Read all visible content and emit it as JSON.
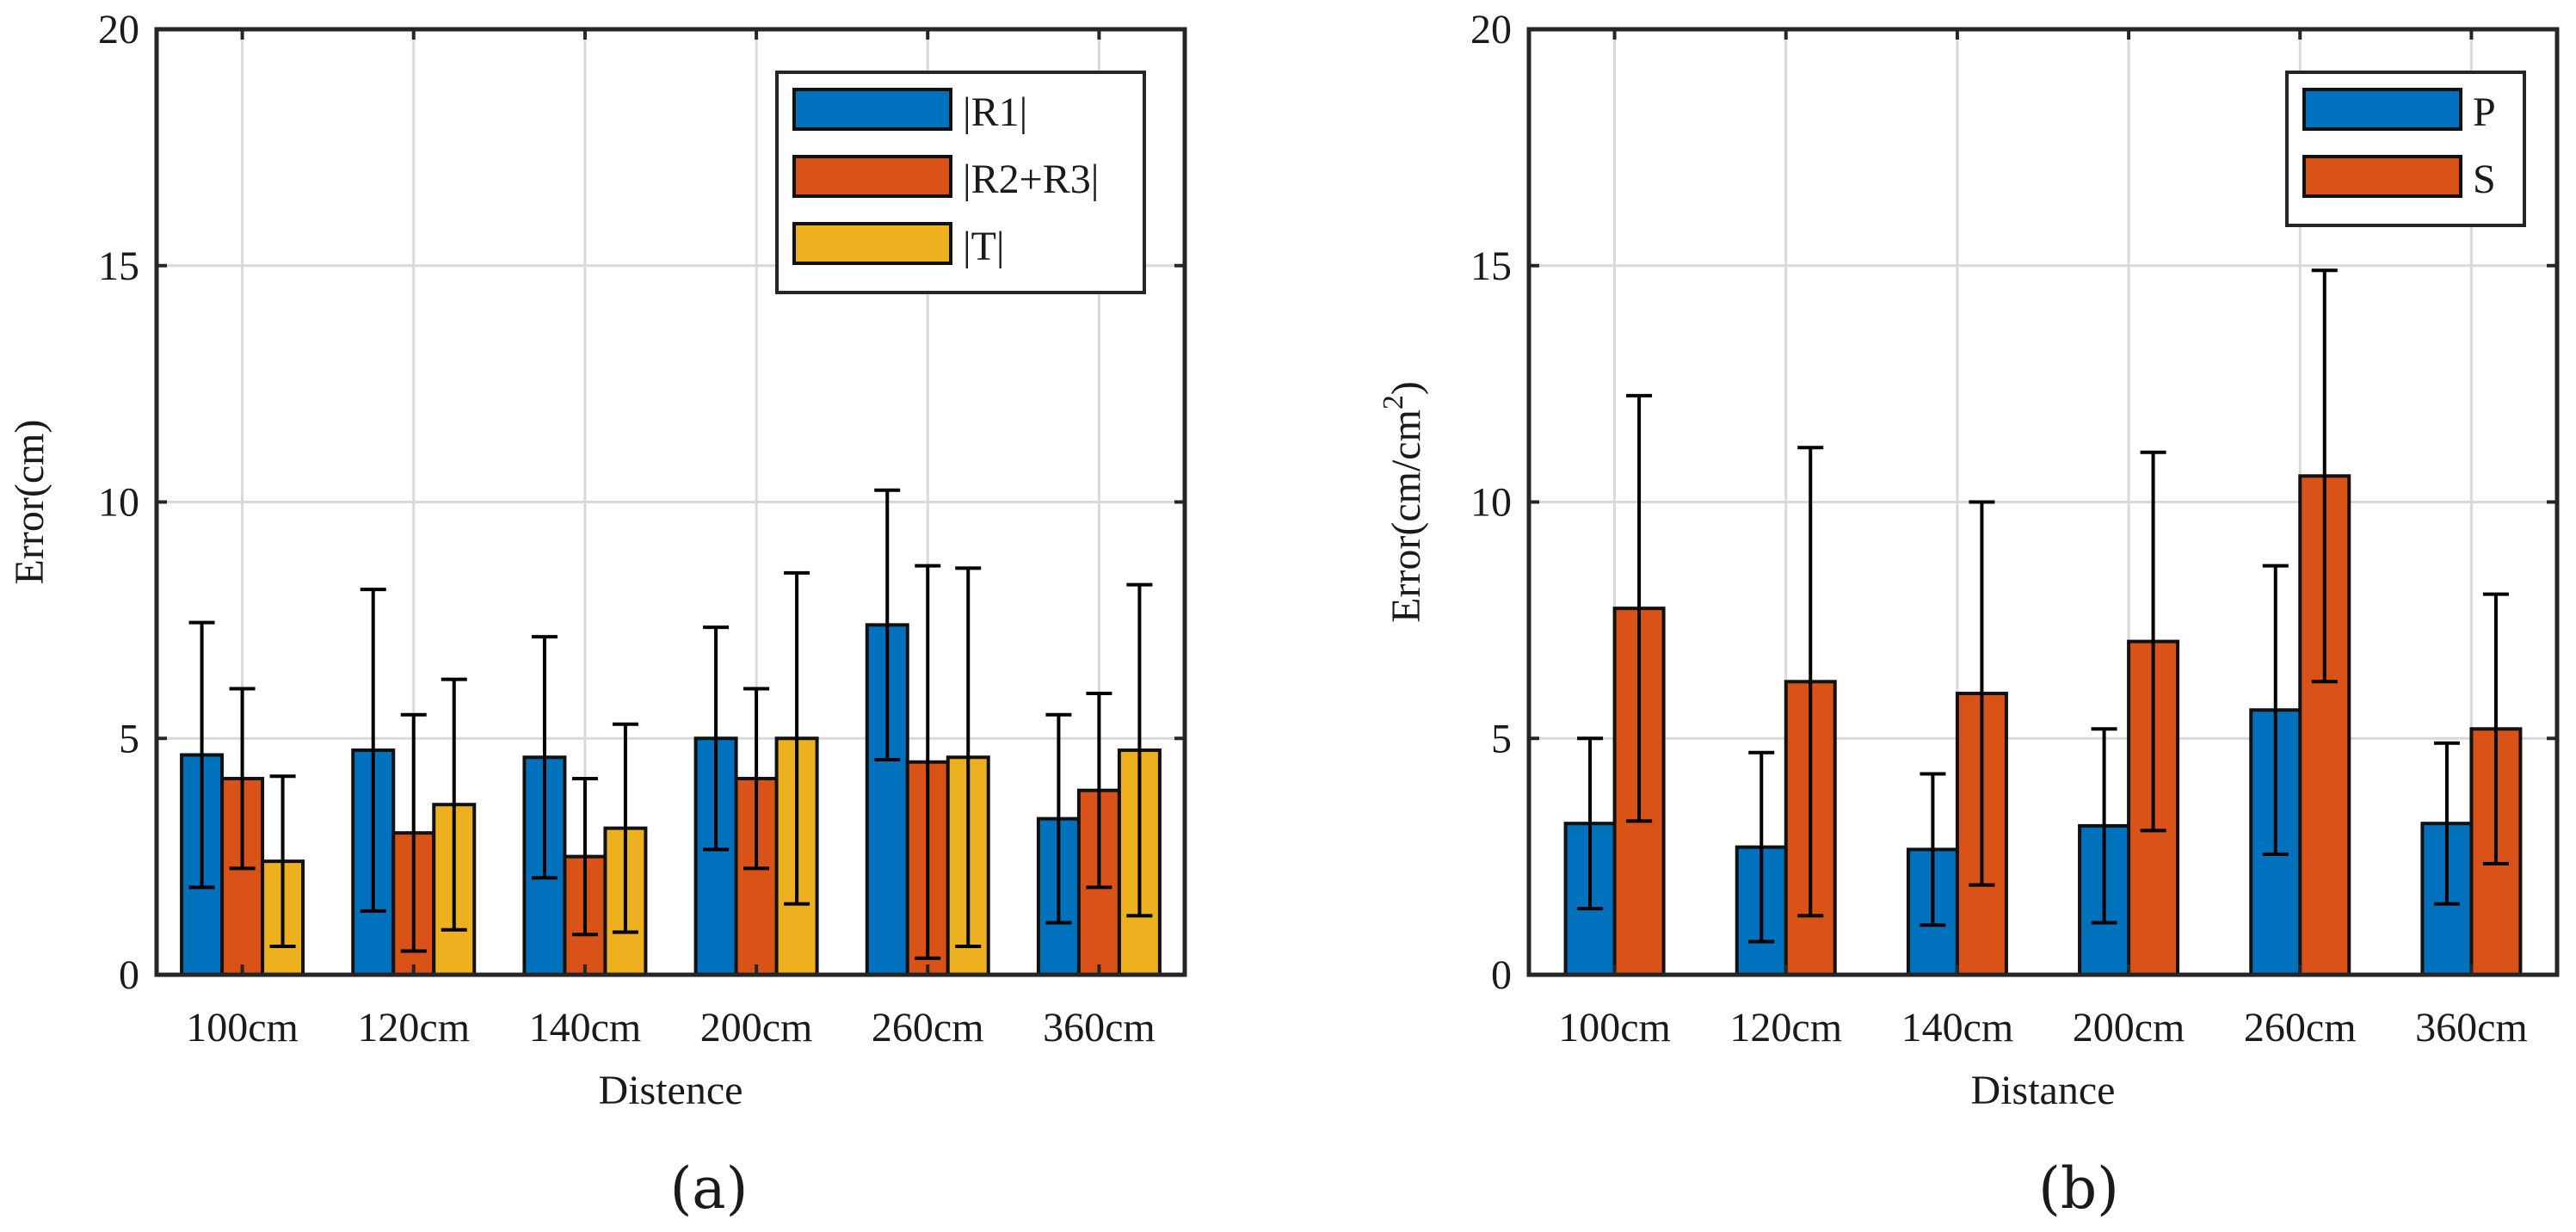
{
  "colors": {
    "series_blue": "#0072BD",
    "series_orange": "#D95319",
    "series_yellow": "#EDB120",
    "axis": "#262626",
    "grid": "#d9d9d9"
  },
  "chart_data": [
    {
      "id": "a",
      "type": "bar",
      "panel_label": "(a)",
      "title": "",
      "xlabel": "Distence",
      "ylabel": "Error(cm)",
      "ylim": [
        0,
        20
      ],
      "yticks": [
        0,
        5,
        10,
        15,
        20
      ],
      "ytick_labels": [
        "0",
        "5",
        "10",
        "15",
        "20"
      ],
      "grid": true,
      "legend_position": "top-right",
      "categories": [
        "100cm",
        "120cm",
        "140cm",
        "200cm",
        "260cm",
        "360cm"
      ],
      "series": [
        {
          "name": "|R1|",
          "color": "#0072BD",
          "values": [
            4.65,
            4.75,
            4.6,
            5.0,
            7.4,
            3.3
          ],
          "err": [
            2.8,
            3.4,
            2.55,
            2.35,
            2.85,
            2.2
          ]
        },
        {
          "name": "|R2+R3|",
          "color": "#D95319",
          "values": [
            4.15,
            3.0,
            2.5,
            4.15,
            4.5,
            3.9
          ],
          "err": [
            1.9,
            2.5,
            1.65,
            1.9,
            4.15,
            2.05
          ]
        },
        {
          "name": "|T|",
          "color": "#EDB120",
          "values": [
            2.4,
            3.6,
            3.1,
            5.0,
            4.6,
            4.75
          ],
          "err": [
            1.8,
            2.65,
            2.2,
            3.5,
            4.0,
            3.5
          ]
        }
      ]
    },
    {
      "id": "b",
      "type": "bar",
      "panel_label": "(b)",
      "title": "",
      "xlabel": "Distance",
      "ylabel": "Error(cm/cm",
      "ylabel_superscript": "2",
      "ylabel_suffix": ")",
      "ylim": [
        0,
        20
      ],
      "yticks": [
        0,
        5,
        10,
        15,
        20
      ],
      "ytick_labels": [
        "0",
        "5",
        "10",
        "15",
        "20"
      ],
      "grid": true,
      "legend_position": "top-right",
      "categories": [
        "100cm",
        "120cm",
        "140cm",
        "200cm",
        "260cm",
        "360cm"
      ],
      "series": [
        {
          "name": "P",
          "color": "#0072BD",
          "values": [
            3.2,
            2.7,
            2.65,
            3.15,
            5.6,
            3.2
          ],
          "err": [
            1.8,
            2.0,
            1.6,
            2.05,
            3.05,
            1.7
          ]
        },
        {
          "name": "S",
          "color": "#D95319",
          "values": [
            7.75,
            6.2,
            5.95,
            7.05,
            10.55,
            5.2
          ],
          "err": [
            4.5,
            4.95,
            4.05,
            4.0,
            4.35,
            2.85
          ]
        }
      ]
    }
  ]
}
